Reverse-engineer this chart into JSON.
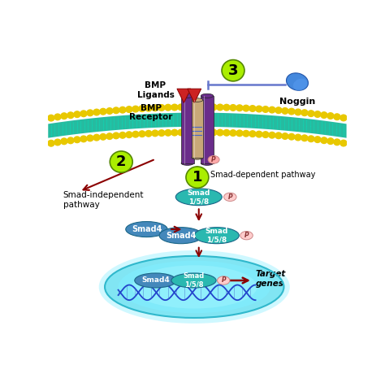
{
  "bg_color": "#ffffff",
  "teal": "#2ab8b0",
  "blue_pill": "#4488bb",
  "dark_blue": "#1a5a9a",
  "purple_rect": "#6a2d8a",
  "tan_rect": "#c8a878",
  "gold": "#e8c800",
  "cyan_membrane": "#00c8a0",
  "dark_red": "#8b0000",
  "pink_p": "#ffaaaa",
  "noggin_blue": "#3388cc",
  "green_circle": "#aaee00",
  "labels": {
    "bmp_ligands": "BMP\nLigands",
    "bmp_receptor": "BMP\nReceptor",
    "noggin": "Noggin",
    "smad_dep": "Smad-dependent pathway",
    "smad_indep": "Smad-independent\npathway",
    "target_genes": "Target\ngenes"
  }
}
